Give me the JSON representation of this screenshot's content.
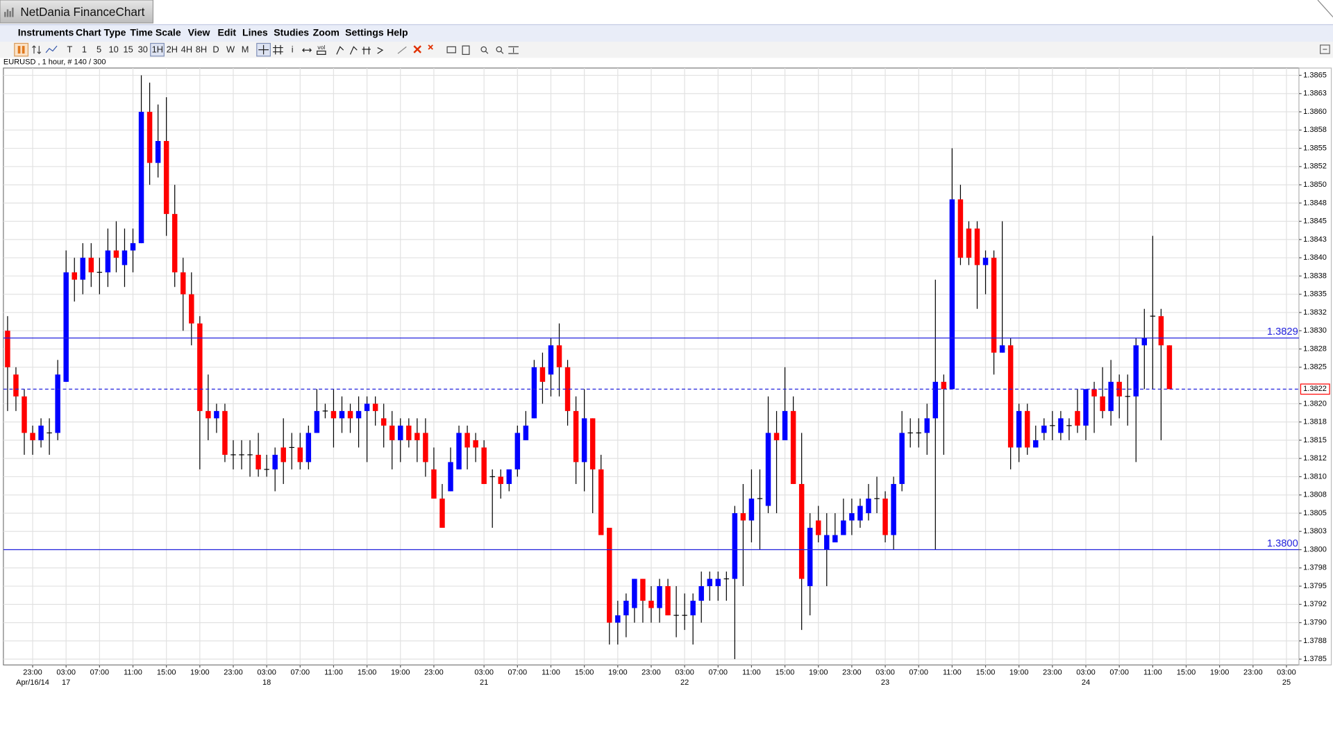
{
  "window": {
    "title": "NetDania FinanceChart"
  },
  "menu": [
    "Instruments",
    "Chart Type",
    "Time Scale",
    "View",
    "Edit",
    "Lines",
    "Studies",
    "Zoom",
    "Settings",
    "Help"
  ],
  "toolbar": {
    "timescales": [
      "T",
      "1",
      "5",
      "10",
      "15",
      "30",
      "1H",
      "2H",
      "4H",
      "8H",
      "D",
      "W",
      "M"
    ],
    "info": "i",
    "volume": "vol"
  },
  "chart_data": {
    "type": "candlestick",
    "title": "EURUSD , 1 hour, # 140 / 300",
    "up_color": "#0000ff",
    "down_color": "#ff0000",
    "wick_color": "#000000",
    "grid": true,
    "categories": [
      null,
      null,
      null,
      "23:00",
      null,
      null,
      null,
      "03:00",
      null,
      null,
      null,
      "07:00",
      null,
      null,
      null,
      "11:00",
      null,
      null,
      null,
      "15:00",
      null,
      null,
      null,
      "19:00",
      null,
      null,
      null,
      "23:00",
      null,
      null,
      null,
      "03:00",
      null,
      null,
      null,
      "07:00",
      null,
      null,
      null,
      "11:00",
      null,
      null,
      null,
      "15:00",
      null,
      null,
      null,
      "19:00",
      null,
      null,
      null,
      "23:00",
      null,
      null,
      null,
      null,
      null,
      "03:00",
      null,
      null,
      null,
      "07:00",
      null,
      null,
      null,
      "11:00",
      null,
      null,
      null,
      "15:00",
      null,
      null,
      null,
      "19:00",
      null,
      null,
      null,
      "23:00",
      null,
      null,
      null,
      "03:00",
      null,
      null,
      null,
      "07:00",
      null,
      null,
      null,
      "11:00",
      null,
      null,
      null,
      "15:00",
      null,
      null,
      null,
      "19:00",
      null,
      null,
      null,
      "23:00",
      null,
      null,
      null,
      "03:00",
      null,
      null,
      null,
      "07:00",
      null,
      null,
      null,
      "11:00",
      null,
      null,
      null,
      "15:00",
      null,
      null,
      null,
      "19:00",
      null,
      null,
      null,
      "23:00",
      null,
      null,
      null,
      "03:00",
      null,
      null,
      null,
      "07:00",
      null,
      null,
      null,
      "11:00",
      null,
      null,
      null,
      "15:00",
      null,
      null,
      null,
      "19:00",
      null,
      null,
      null,
      "23:00",
      null,
      null,
      null,
      "03:00"
    ],
    "dates": [
      null,
      null,
      null,
      "Apr/16/14",
      null,
      null,
      null,
      "17",
      null,
      null,
      null,
      null,
      null,
      null,
      null,
      null,
      null,
      null,
      null,
      null,
      null,
      null,
      null,
      null,
      null,
      null,
      null,
      null,
      null,
      null,
      null,
      "18",
      null,
      null,
      null,
      null,
      null,
      null,
      null,
      null,
      null,
      null,
      null,
      null,
      null,
      null,
      null,
      null,
      null,
      null,
      null,
      null,
      null,
      null,
      null,
      null,
      null,
      "21",
      null,
      null,
      null,
      null,
      null,
      null,
      null,
      null,
      null,
      null,
      null,
      null,
      null,
      null,
      null,
      null,
      null,
      null,
      null,
      null,
      null,
      null,
      null,
      "22",
      null,
      null,
      null,
      null,
      null,
      null,
      null,
      null,
      null,
      null,
      null,
      null,
      null,
      null,
      null,
      null,
      null,
      null,
      null,
      null,
      null,
      null,
      null,
      "23",
      null,
      null,
      null,
      null,
      null,
      null,
      null,
      null,
      null,
      null,
      null,
      null,
      null,
      null,
      null,
      null,
      null,
      null,
      null,
      null,
      null,
      null,
      null,
      "24",
      null,
      null,
      null,
      null,
      null,
      null,
      null,
      null,
      null,
      null,
      null,
      null,
      null,
      null,
      null,
      null,
      null,
      null,
      null,
      null,
      null,
      null,
      null,
      "25"
    ],
    "open": [
      1.383,
      1.3824,
      1.3821,
      1.3816,
      1.3815,
      1.3816,
      1.3816,
      1.3823,
      1.3838,
      1.3837,
      1.384,
      1.3838,
      1.3838,
      1.3841,
      1.3839,
      1.3841,
      1.3842,
      1.386,
      1.3853,
      1.3856,
      1.3846,
      1.3838,
      1.3835,
      1.3831,
      1.3819,
      1.3818,
      1.3819,
      1.3813,
      1.3813,
      1.3813,
      1.3813,
      1.3811,
      1.3811,
      1.3814,
      1.3814,
      1.3814,
      1.3812,
      1.3816,
      1.3819,
      1.3819,
      1.3818,
      1.3819,
      1.3818,
      1.3819,
      1.382,
      1.3818,
      1.3817,
      1.3815,
      1.3817,
      1.3816,
      1.3816,
      1.3811,
      1.3807,
      1.3808,
      1.3811,
      1.3816,
      1.3815,
      1.3814,
      1.381,
      1.381,
      1.3809,
      1.3811,
      1.3815,
      1.3818,
      1.3825,
      1.3824,
      1.3828,
      1.3825,
      1.3819,
      1.3812,
      1.3818,
      1.3811,
      1.3803,
      1.379,
      1.3791,
      1.3792,
      1.3796,
      1.3793,
      1.3792,
      1.3795,
      1.3791,
      1.3791,
      1.3791,
      1.3793,
      1.3795,
      1.3795,
      1.3796,
      1.3796,
      1.3805,
      1.3804,
      1.3807,
      1.3806,
      1.3816,
      1.3815,
      1.3819,
      1.3809,
      1.3795,
      1.3804,
      1.38,
      1.3801,
      1.3802,
      1.3804,
      1.3804,
      1.3805,
      1.3807,
      1.3807,
      1.3802,
      1.3809,
      1.3816,
      1.3816,
      1.3816,
      1.3818,
      1.3823,
      1.3822,
      1.3848,
      1.3844,
      1.3844,
      1.3839,
      1.384,
      1.3827,
      1.3828,
      1.3814,
      1.3819,
      1.3814,
      1.3816,
      1.3817,
      1.3816,
      1.3817,
      1.3819,
      1.3817,
      1.3822,
      1.3821,
      1.3819,
      1.3823,
      1.3821,
      1.3821,
      1.3828,
      1.3832,
      1.3832,
      1.3828,
      null,
      null,
      null,
      null,
      null,
      null,
      null,
      null,
      null,
      null,
      null,
      null,
      null,
      null
    ],
    "high": [
      1.3832,
      1.3825,
      1.3822,
      1.3817,
      1.3818,
      1.3818,
      1.3826,
      1.3841,
      1.384,
      1.3842,
      1.3842,
      1.384,
      1.3844,
      1.3845,
      1.3844,
      1.3844,
      1.3865,
      1.3864,
      1.3861,
      1.3862,
      1.385,
      1.384,
      1.3838,
      1.3832,
      1.3824,
      1.382,
      1.382,
      1.3815,
      1.3815,
      1.3815,
      1.3816,
      1.3813,
      1.3814,
      1.3818,
      1.3816,
      1.3816,
      1.3817,
      1.3822,
      1.382,
      1.3822,
      1.3821,
      1.382,
      1.3821,
      1.3821,
      1.3821,
      1.382,
      1.3819,
      1.3818,
      1.3818,
      1.3818,
      1.3818,
      1.3814,
      1.3809,
      1.3814,
      1.3817,
      1.3817,
      1.3816,
      1.3815,
      1.3811,
      1.3811,
      1.3811,
      1.3817,
      1.3819,
      1.3826,
      1.3827,
      1.3829,
      1.3831,
      1.3826,
      1.3821,
      1.3822,
      1.3818,
      1.3813,
      1.3803,
      1.3793,
      1.3794,
      1.3796,
      1.3796,
      1.3795,
      1.3796,
      1.3796,
      1.3795,
      1.3794,
      1.3794,
      1.3797,
      1.3797,
      1.3797,
      1.3797,
      1.3806,
      1.3809,
      1.3811,
      1.3811,
      1.3821,
      1.3819,
      1.3825,
      1.3821,
      1.3816,
      1.3805,
      1.3806,
      1.3805,
      1.3805,
      1.3807,
      1.3807,
      1.3807,
      1.3809,
      1.381,
      1.3808,
      1.381,
      1.3819,
      1.3818,
      1.3818,
      1.382,
      1.3837,
      1.3824,
      1.3855,
      1.385,
      1.3845,
      1.3845,
      1.3841,
      1.3841,
      1.3845,
      1.3829,
      1.382,
      1.382,
      1.3817,
      1.3818,
      1.3819,
      1.3819,
      1.3818,
      1.3822,
      1.3822,
      1.3823,
      1.3825,
      1.3826,
      1.3824,
      1.3824,
      1.3829,
      1.3833,
      1.3843,
      1.3833,
      1.3828,
      null,
      null,
      null,
      null,
      null,
      null,
      null,
      null,
      null,
      null,
      null,
      null,
      null,
      null
    ],
    "low": [
      1.3819,
      1.3819,
      1.3813,
      1.3813,
      1.3814,
      1.3813,
      1.3815,
      1.3823,
      1.3834,
      1.3835,
      1.3836,
      1.3835,
      1.3836,
      1.3838,
      1.3836,
      1.3838,
      1.3842,
      1.385,
      1.3851,
      1.3843,
      1.3836,
      1.383,
      1.3828,
      1.3811,
      1.3815,
      1.3816,
      1.3812,
      1.3811,
      1.3811,
      1.381,
      1.381,
      1.381,
      1.3808,
      1.3809,
      1.3811,
      1.3811,
      1.3811,
      1.3816,
      1.3818,
      1.3814,
      1.3816,
      1.3816,
      1.3814,
      1.3812,
      1.3817,
      1.3814,
      1.3811,
      1.3812,
      1.3814,
      1.3812,
      1.381,
      1.3807,
      1.3803,
      1.3808,
      1.3811,
      1.3811,
      1.3812,
      1.3809,
      1.3803,
      1.3807,
      1.3808,
      1.381,
      1.3815,
      1.3818,
      1.382,
      1.3821,
      1.3821,
      1.3817,
      1.3809,
      1.3808,
      1.3805,
      1.3802,
      1.3787,
      1.3787,
      1.3788,
      1.379,
      1.379,
      1.379,
      1.379,
      1.3791,
      1.3788,
      1.3789,
      1.3787,
      1.379,
      1.3793,
      1.3793,
      1.3793,
      1.3785,
      1.3795,
      1.3801,
      1.38,
      1.3805,
      1.3805,
      1.3815,
      1.3809,
      1.3789,
      1.3791,
      1.3801,
      1.3795,
      1.3801,
      1.3802,
      1.3802,
      1.3803,
      1.3804,
      1.3805,
      1.3801,
      1.38,
      1.3808,
      1.3814,
      1.3814,
      1.3813,
      1.38,
      1.3813,
      1.3822,
      1.3839,
      1.3839,
      1.3833,
      1.3835,
      1.3824,
      1.3827,
      1.3811,
      1.3812,
      1.3813,
      1.3814,
      1.3815,
      1.3815,
      1.3815,
      1.3815,
      1.3816,
      1.3815,
      1.3816,
      1.3818,
      1.3817,
      1.3818,
      1.3817,
      1.3812,
      1.3822,
      1.3822,
      1.3815,
      1.3822,
      null,
      null,
      null,
      null,
      null,
      null,
      null,
      null,
      null,
      null,
      null,
      null,
      null,
      null
    ],
    "close": [
      1.3825,
      1.3821,
      1.3816,
      1.3815,
      1.3817,
      1.3816,
      1.3824,
      1.3838,
      1.3837,
      1.384,
      1.3838,
      1.3838,
      1.3841,
      1.384,
      1.3841,
      1.3842,
      1.386,
      1.3853,
      1.3856,
      1.3846,
      1.3838,
      1.3835,
      1.3831,
      1.3819,
      1.3818,
      1.3819,
      1.3813,
      1.3813,
      1.3813,
      1.3813,
      1.3811,
      1.3811,
      1.3813,
      1.3812,
      1.3814,
      1.3812,
      1.3816,
      1.3819,
      1.3819,
      1.3818,
      1.3819,
      1.3818,
      1.3819,
      1.382,
      1.3819,
      1.3817,
      1.3815,
      1.3817,
      1.3815,
      1.3815,
      1.3812,
      1.3807,
      1.3803,
      1.3812,
      1.3816,
      1.3814,
      1.3814,
      1.3809,
      1.381,
      1.3809,
      1.3811,
      1.3816,
      1.3817,
      1.3825,
      1.3823,
      1.3828,
      1.3825,
      1.3819,
      1.3812,
      1.3818,
      1.3811,
      1.3802,
      1.379,
      1.3791,
      1.3793,
      1.3796,
      1.3793,
      1.3792,
      1.3795,
      1.3791,
      1.3791,
      1.3791,
      1.3793,
      1.3795,
      1.3796,
      1.3796,
      1.3796,
      1.3805,
      1.3804,
      1.3807,
      1.3807,
      1.3816,
      1.3815,
      1.3819,
      1.3809,
      1.3796,
      1.3803,
      1.3802,
      1.3802,
      1.3802,
      1.3804,
      1.3805,
      1.3806,
      1.3807,
      1.3807,
      1.3802,
      1.3809,
      1.3816,
      1.3816,
      1.3816,
      1.3818,
      1.3823,
      1.3822,
      1.3848,
      1.384,
      1.384,
      1.3839,
      1.384,
      1.3827,
      1.3828,
      1.3814,
      1.3819,
      1.3814,
      1.3815,
      1.3817,
      1.3817,
      1.3818,
      1.3817,
      1.3817,
      1.3822,
      1.3821,
      1.3819,
      1.3823,
      1.3821,
      1.3821,
      1.3828,
      1.3829,
      1.3832,
      1.3828,
      1.3822,
      null,
      null,
      null,
      null,
      null,
      null,
      null,
      null,
      null,
      null,
      null,
      null,
      null,
      null
    ],
    "ylim": [
      1.37842,
      1.3866
    ],
    "yticks": [
      1.3865,
      {
        "value": 1.38625,
        "label": "1.3863"
      },
      {
        "value": 1.386,
        "label": "1.3860"
      },
      {
        "value": 1.38575,
        "label": "1.3858"
      },
      1.3855,
      {
        "value": 1.38525,
        "label": "1.3852"
      },
      {
        "value": 1.385,
        "label": "1.3850"
      },
      {
        "value": 1.38475,
        "label": "1.3848"
      },
      1.3845,
      {
        "value": 1.38425,
        "label": "1.3843"
      },
      {
        "value": 1.384,
        "label": "1.3840"
      },
      {
        "value": 1.38375,
        "label": "1.3838"
      },
      1.3835,
      {
        "value": 1.38325,
        "label": "1.3832"
      },
      {
        "value": 1.383,
        "label": "1.3830"
      },
      {
        "value": 1.38275,
        "label": "1.3828"
      },
      1.3825,
      {
        "value": 1.382,
        "label": "1.3820"
      },
      {
        "value": 1.38175,
        "label": "1.3818"
      },
      1.3815,
      {
        "value": 1.38125,
        "label": "1.3812"
      },
      {
        "value": 1.381,
        "label": "1.3810"
      },
      {
        "value": 1.38075,
        "label": "1.3808"
      },
      1.3805,
      {
        "value": 1.38025,
        "label": "1.3803"
      },
      {
        "value": 1.38,
        "label": "1.3800"
      },
      {
        "value": 1.37975,
        "label": "1.3798"
      },
      1.3795,
      {
        "value": 1.37925,
        "label": "1.3792"
      },
      {
        "value": 1.379,
        "label": "1.3790"
      },
      {
        "value": 1.37875,
        "label": "1.3788"
      },
      1.3785
    ],
    "hlines": [
      {
        "value": 1.3829,
        "label": "1.3829"
      },
      {
        "value": 1.38,
        "label": "1.3800"
      }
    ],
    "hline_color": "#2222dd",
    "current_price": {
      "value": 1.3822,
      "label": "1.3822"
    }
  }
}
